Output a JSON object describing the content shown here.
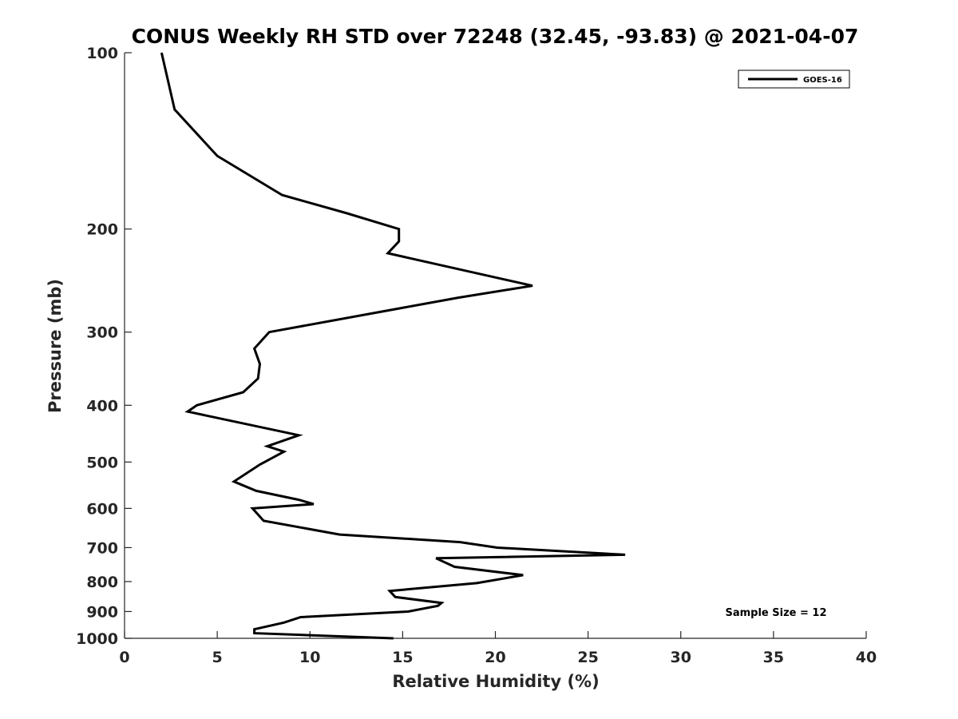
{
  "chart_data": {
    "type": "line",
    "title": "CONUS Weekly RH STD over 72248 (32.45, -93.83) @ 2021-04-07",
    "xlabel": "Relative Humidity (%)",
    "ylabel": "Pressure (mb)",
    "xlim": [
      0,
      40
    ],
    "ylim": [
      100,
      1000
    ],
    "yscale": "log",
    "y_reversed": true,
    "grid": false,
    "legend_position": "top-right",
    "x_ticks": [
      0,
      5,
      10,
      15,
      20,
      25,
      30,
      35,
      40
    ],
    "x_tick_labels": [
      "0",
      "5",
      "10",
      "15",
      "20",
      "25",
      "30",
      "35",
      "40"
    ],
    "y_ticks": [
      100,
      200,
      300,
      400,
      500,
      600,
      700,
      800,
      900,
      1000
    ],
    "y_tick_labels": [
      "100",
      "200",
      "300",
      "400",
      "500",
      "600",
      "700",
      "800",
      "900",
      "1000"
    ],
    "annotation": "Sample Size = 12",
    "series": [
      {
        "name": "GOES-16",
        "color": "#000000",
        "points": [
          [
            2.0,
            100
          ],
          [
            2.7,
            125
          ],
          [
            5.0,
            150
          ],
          [
            8.5,
            175
          ],
          [
            12.0,
            188
          ],
          [
            14.8,
            200
          ],
          [
            14.8,
            210
          ],
          [
            14.2,
            220
          ],
          [
            22.0,
            250
          ],
          [
            18.0,
            262
          ],
          [
            7.8,
            300
          ],
          [
            7.0,
            320
          ],
          [
            7.3,
            340
          ],
          [
            7.2,
            360
          ],
          [
            6.4,
            380
          ],
          [
            3.9,
            400
          ],
          [
            3.4,
            410
          ],
          [
            9.4,
            450
          ],
          [
            7.7,
            470
          ],
          [
            8.6,
            480
          ],
          [
            7.3,
            505
          ],
          [
            5.9,
            540
          ],
          [
            7.1,
            560
          ],
          [
            9.4,
            580
          ],
          [
            10.2,
            590
          ],
          [
            6.9,
            600
          ],
          [
            7.5,
            630
          ],
          [
            11.6,
            665
          ],
          [
            18.1,
            685
          ],
          [
            20.1,
            700
          ],
          [
            27.0,
            720
          ],
          [
            16.8,
            730
          ],
          [
            17.8,
            755
          ],
          [
            21.5,
            780
          ],
          [
            19.0,
            805
          ],
          [
            14.3,
            830
          ],
          [
            14.6,
            850
          ],
          [
            17.1,
            870
          ],
          [
            16.9,
            880
          ],
          [
            15.3,
            900
          ],
          [
            9.5,
            920
          ],
          [
            8.6,
            940
          ],
          [
            7.0,
            965
          ],
          [
            7.0,
            980
          ],
          [
            14.5,
            1000
          ]
        ]
      }
    ]
  }
}
